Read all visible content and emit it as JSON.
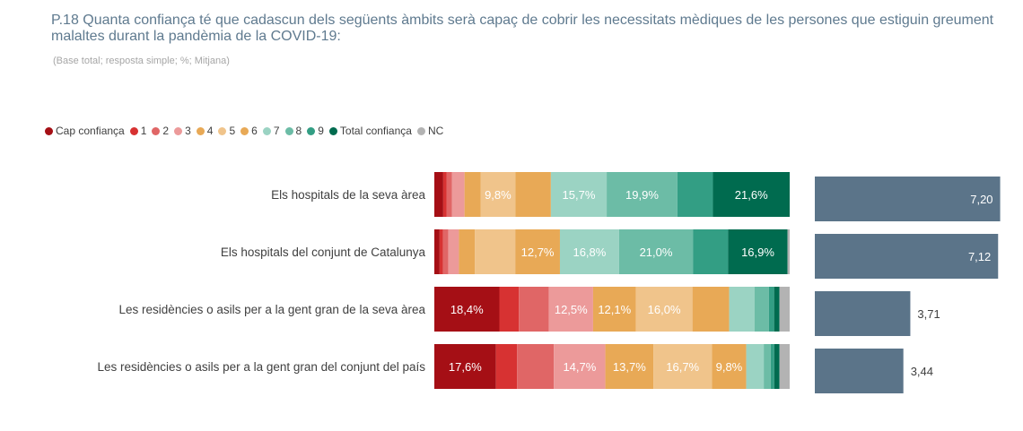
{
  "header": {
    "title": "P.18 Quanta confiança té que cadascun dels següents àmbits serà capaç de cobrir les necessitats mèdiques de les persones que estiguin greument malaltes durant la pandèmia de la COVID-19:",
    "subtitle": "(Base total; resposta simple; %; Mitjana)"
  },
  "chart_data": {
    "type": "bar",
    "stacked": true,
    "orientation": "horizontal",
    "legend_position": "top-left",
    "categories": [
      "Els hospitals de la seva àrea",
      "Els hospitals del conjunt de Catalunya",
      "Les residències o asils per a la gent gran de la seva àrea",
      "Les residències o asils per a la gent gran del conjunt del país"
    ],
    "series": [
      {
        "name": "Cap confiança",
        "color": "#a50f15",
        "values": [
          2.5,
          1.5,
          18.4,
          17.6
        ]
      },
      {
        "name": "1",
        "color": "#d73232",
        "values": [
          1.0,
          1.0,
          5.5,
          6.0
        ]
      },
      {
        "name": "2",
        "color": "#e06666",
        "values": [
          1.5,
          1.5,
          8.5,
          10.5
        ]
      },
      {
        "name": "3",
        "color": "#ec9a9a",
        "values": [
          3.5,
          3.0,
          12.5,
          14.7
        ]
      },
      {
        "name": "4",
        "color": "#e8a956",
        "values": [
          4.5,
          4.5,
          12.1,
          13.7
        ]
      },
      {
        "name": "5",
        "color": "#f0c48b",
        "values": [
          9.8,
          11.5,
          16.0,
          16.7
        ]
      },
      {
        "name": "6",
        "color": "#e8a956",
        "values": [
          10.0,
          12.7,
          10.4,
          9.8
        ]
      },
      {
        "name": "7",
        "color": "#9bd3c3",
        "values": [
          15.7,
          16.8,
          7.2,
          5.0
        ]
      },
      {
        "name": "8",
        "color": "#6cbca6",
        "values": [
          19.9,
          21.0,
          4.0,
          2.0
        ]
      },
      {
        "name": "9",
        "color": "#339e84",
        "values": [
          10.0,
          10.0,
          1.5,
          1.0
        ]
      },
      {
        "name": "Total confiança",
        "color": "#006b4f",
        "values": [
          21.6,
          16.9,
          1.5,
          1.5
        ]
      },
      {
        "name": "NC",
        "color": "#b3b3b3",
        "values": [
          0.0,
          0.6,
          2.9,
          2.9
        ]
      }
    ],
    "value_labels": [
      [
        null,
        null,
        null,
        null,
        null,
        "9,8%",
        null,
        "15,7%",
        "19,9%",
        null,
        "21,6%",
        null
      ],
      [
        null,
        null,
        null,
        null,
        null,
        null,
        "12,7%",
        "16,8%",
        "21,0%",
        null,
        "16,9%",
        null
      ],
      [
        "18,4%",
        null,
        null,
        "12,5%",
        "12,1%",
        "16,0%",
        null,
        null,
        null,
        null,
        null,
        null
      ],
      [
        "17,6%",
        null,
        null,
        "14,7%",
        "13,7%",
        "16,7%",
        "9,8%",
        null,
        null,
        null,
        null,
        null
      ]
    ],
    "mean": {
      "color": "#5b7489",
      "values": [
        7.2,
        7.12,
        3.71,
        3.44
      ],
      "labels": [
        "7,20",
        "7,12",
        "3,71",
        "3,44"
      ],
      "xlim": [
        0,
        7.32
      ]
    },
    "xlim": [
      0,
      100
    ]
  }
}
